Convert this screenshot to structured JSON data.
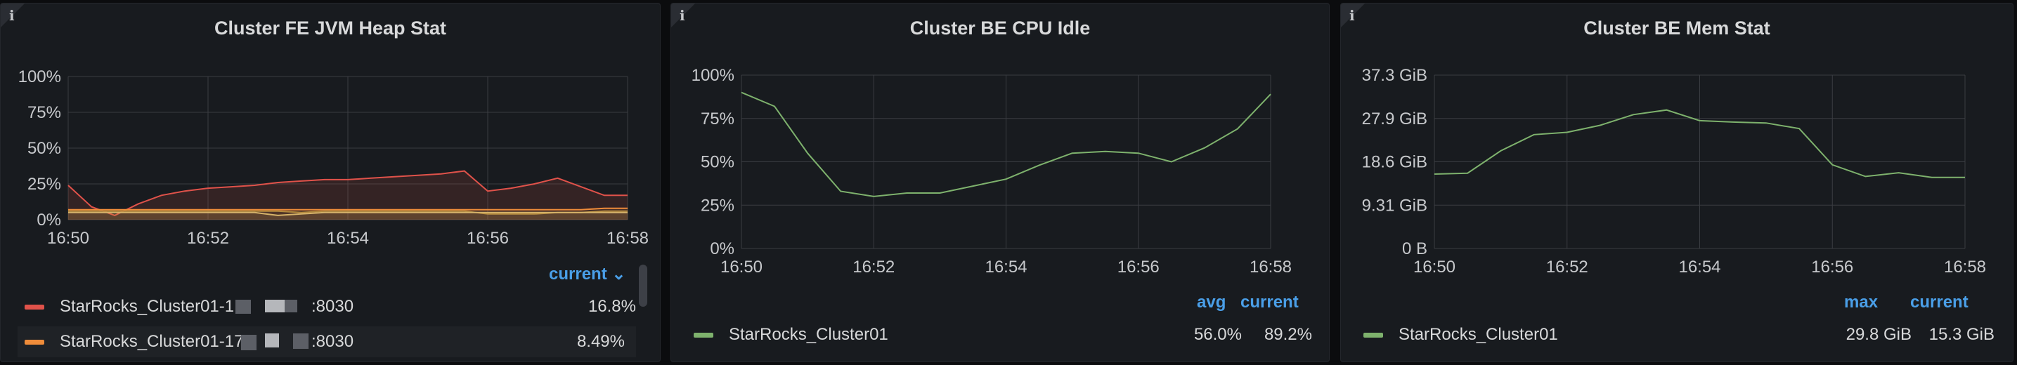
{
  "panels": {
    "fe": {
      "title": "Cluster FE JVM Heap Stat",
      "legend_header": "current ⌄",
      "legend": [
        {
          "name": "StarRocks_Cluster01-1",
          "suffix": ":8030",
          "current": "16.8%",
          "color": "#e0524a"
        },
        {
          "name": "StarRocks_Cluster01-17",
          "suffix": ":8030",
          "current": "8.49%",
          "color": "#ef8c3a"
        }
      ],
      "chart_data": {
        "type": "line",
        "x_ticks": [
          "16:50",
          "16:52",
          "16:54",
          "16:56",
          "16:58"
        ],
        "y_ticks": [
          "0%",
          "25%",
          "50%",
          "75%",
          "100%"
        ],
        "ylim": [
          0,
          100
        ],
        "x": [
          "16:50",
          "16:50:20",
          "16:50:40",
          "16:51",
          "16:51:20",
          "16:51:40",
          "16:52",
          "16:52:20",
          "16:52:40",
          "16:53",
          "16:53:20",
          "16:53:40",
          "16:54",
          "16:54:20",
          "16:54:40",
          "16:55",
          "16:55:20",
          "16:55:40",
          "16:56",
          "16:56:20",
          "16:56:40",
          "16:57",
          "16:57:20",
          "16:57:40",
          "16:58"
        ],
        "series": [
          {
            "name": "StarRocks_Cluster01-1",
            "color": "#e0524a",
            "values": [
              24,
              9,
              3,
              11,
              17,
              20,
              22,
              23,
              24,
              26,
              27,
              28,
              28,
              29,
              30,
              31,
              32,
              34,
              20,
              22,
              25,
              29,
              23,
              17,
              17
            ]
          },
          {
            "name": "StarRocks_Cluster01-17",
            "color": "#ef8c3a",
            "values": [
              7,
              7,
              7,
              7,
              7,
              7,
              7,
              7,
              7,
              7,
              7,
              7,
              7,
              7,
              7,
              7,
              7,
              7,
              7,
              7,
              7,
              7,
              7,
              8,
              8
            ]
          },
          {
            "color": "#b58b3e",
            "values": [
              6,
              6,
              6,
              6,
              6,
              6,
              6,
              6,
              6,
              6,
              5,
              6,
              6,
              6,
              6,
              6,
              6,
              6,
              4,
              4,
              4,
              5,
              5,
              6,
              6
            ]
          },
          {
            "color": "#d6b36a",
            "values": [
              5,
              5,
              5,
              5,
              5,
              5,
              5,
              5,
              5,
              3,
              4,
              5,
              5,
              5,
              5,
              5,
              5,
              5,
              5,
              5,
              5,
              5,
              5,
              5,
              5
            ]
          }
        ]
      }
    },
    "cpu": {
      "title": "Cluster BE CPU Idle",
      "legend_headers": [
        "avg",
        "current"
      ],
      "legend": [
        {
          "name": "StarRocks_Cluster01",
          "avg": "56.0%",
          "current": "89.2%",
          "color": "#7eb26d"
        }
      ],
      "chart_data": {
        "type": "line",
        "x_ticks": [
          "16:50",
          "16:52",
          "16:54",
          "16:56",
          "16:58"
        ],
        "y_ticks": [
          "0%",
          "25%",
          "50%",
          "75%",
          "100%"
        ],
        "ylim": [
          0,
          100
        ],
        "x": [
          "16:50",
          "16:50:30",
          "16:51",
          "16:51:30",
          "16:52",
          "16:52:30",
          "16:53",
          "16:53:30",
          "16:54",
          "16:54:30",
          "16:55",
          "16:55:30",
          "16:56",
          "16:56:30",
          "16:57",
          "16:57:30",
          "16:58"
        ],
        "series": [
          {
            "name": "StarRocks_Cluster01",
            "color": "#7eb26d",
            "values": [
              90,
              82,
              55,
              33,
              30,
              32,
              32,
              36,
              40,
              48,
              55,
              56,
              55,
              50,
              58,
              69,
              89
            ]
          }
        ]
      }
    },
    "mem": {
      "title": "Cluster BE Mem Stat",
      "legend_headers": [
        "max",
        "current"
      ],
      "legend": [
        {
          "name": "StarRocks_Cluster01",
          "max": "29.8 GiB",
          "current": "15.3 GiB",
          "color": "#7eb26d"
        }
      ],
      "chart_data": {
        "type": "line",
        "x_ticks": [
          "16:50",
          "16:52",
          "16:54",
          "16:56",
          "16:58"
        ],
        "y_ticks": [
          "0 B",
          "9.31 GiB",
          "18.6 GiB",
          "27.9 GiB",
          "37.3 GiB"
        ],
        "ylim": [
          0,
          37.3
        ],
        "x": [
          "16:50",
          "16:50:30",
          "16:51",
          "16:51:30",
          "16:52",
          "16:52:30",
          "16:53",
          "16:53:30",
          "16:54",
          "16:54:30",
          "16:55",
          "16:55:30",
          "16:56",
          "16:56:30",
          "16:57",
          "16:57:30",
          "16:58"
        ],
        "series": [
          {
            "name": "StarRocks_Cluster01",
            "color": "#7eb26d",
            "values": [
              16.0,
              16.2,
              21.0,
              24.5,
              25.0,
              26.5,
              28.8,
              29.8,
              27.5,
              27.2,
              27.0,
              25.8,
              18.0,
              15.5,
              16.3,
              15.3,
              15.3
            ]
          }
        ]
      }
    }
  }
}
